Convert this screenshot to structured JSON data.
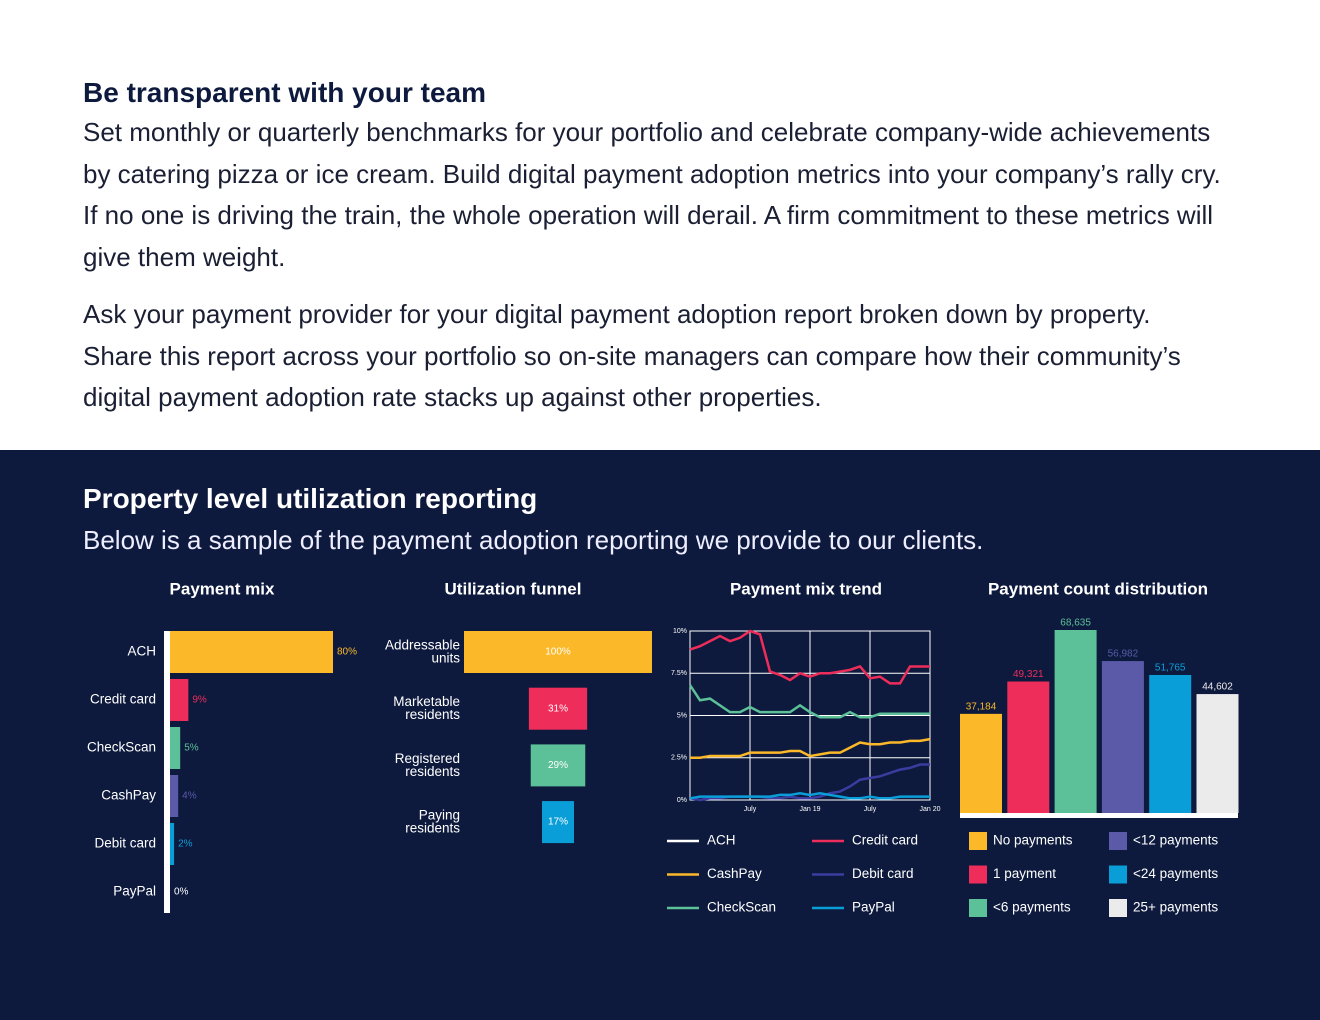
{
  "intro": {
    "heading": "Be transparent with your team",
    "paragraphs": [
      "Set monthly or quarterly benchmarks for your portfolio and celebrate company-wide achievements by catering pizza or ice cream. Build digital payment adoption metrics into your company’s rally cry. If no one is driving the train, the whole operation will derail. A firm commitment to these metrics will give them weight.",
      "Ask your payment provider for your digital payment adoption report broken down by property. Share this report across your portfolio so on-site managers can compare how their community’s digital payment adoption rate stacks up against other properties."
    ]
  },
  "reporting": {
    "heading": "Property level utilization reporting",
    "subheading": "Below is a sample of the payment adoption reporting we provide to our clients."
  },
  "chart_data": [
    {
      "type": "hbar",
      "title": "Payment mix",
      "categories": [
        "ACH",
        "Credit card",
        "CheckScan",
        "CashPay",
        "Debit card",
        "PayPal"
      ],
      "values": [
        80,
        9,
        5,
        4,
        2,
        0
      ],
      "value_labels": [
        "80%",
        "9%",
        "5%",
        "4%",
        "2%",
        "0%"
      ],
      "colors": [
        "#fbb829",
        "#ee2d5a",
        "#5cc098",
        "#5a5aa8",
        "#0a9ed8",
        "#ffffff"
      ]
    },
    {
      "type": "funnel",
      "title": "Utilization funnel",
      "categories": [
        "Addressable units",
        "Marketable residents",
        "Registered residents",
        "Paying residents"
      ],
      "values": [
        100,
        31,
        29,
        17
      ],
      "value_labels": [
        "100%",
        "31%",
        "29%",
        "17%"
      ],
      "colors": [
        "#fbb829",
        "#ee2d5a",
        "#5cc098",
        "#0a9ed8"
      ]
    },
    {
      "type": "line",
      "title": "Payment mix trend",
      "categories": [
        null,
        null,
        null,
        null,
        null,
        null,
        "July",
        null,
        null,
        null,
        null,
        null,
        "Jan 19",
        null,
        null,
        null,
        null,
        null,
        "July",
        null,
        null,
        null,
        null,
        null,
        "Jan 20"
      ],
      "ylim": [
        0,
        10
      ],
      "yticks": [
        {
          "value": 0,
          "label": "0%"
        },
        {
          "value": 2.5,
          "label": "2.5%"
        },
        {
          "value": 5,
          "label": "5%"
        },
        {
          "value": 7.5,
          "label": "7.5%"
        },
        {
          "value": 10,
          "label": "10%"
        }
      ],
      "grid": true,
      "series": [
        {
          "name": "ACH",
          "color": "#ffffff",
          "values": [
            null,
            null,
            null,
            null,
            null,
            null,
            null,
            null,
            null,
            null,
            null,
            null,
            null,
            null,
            null,
            null,
            null,
            null,
            null,
            null,
            null,
            null,
            null,
            null,
            null
          ]
        },
        {
          "name": "Credit card",
          "color": "#ee2d5a",
          "values": [
            8.9,
            9.1,
            9.4,
            9.7,
            9.4,
            9.6,
            10,
            9.8,
            7.6,
            7.4,
            7.1,
            7.5,
            7.3,
            7.5,
            7.5,
            7.6,
            7.7,
            7.9,
            7.2,
            7.3,
            6.9,
            6.9,
            7.9,
            7.9,
            7.9
          ]
        },
        {
          "name": "CashPay",
          "color": "#fbb829",
          "values": [
            2.5,
            2.5,
            2.6,
            2.6,
            2.6,
            2.6,
            2.8,
            2.8,
            2.8,
            2.8,
            2.9,
            2.9,
            2.6,
            2.7,
            2.8,
            2.8,
            3.1,
            3.4,
            3.3,
            3.3,
            3.4,
            3.4,
            3.5,
            3.5,
            3.6
          ]
        },
        {
          "name": "Debit card",
          "color": "#3c3ca0",
          "values": [
            0.1,
            0,
            0.1,
            0.1,
            0.2,
            0.2,
            0.2,
            0.2,
            0.1,
            0.1,
            0.2,
            0.1,
            0.1,
            0.2,
            0.4,
            0.5,
            0.8,
            1.2,
            1.3,
            1.4,
            1.6,
            1.8,
            1.9,
            2.1,
            2.1
          ]
        },
        {
          "name": "CheckScan",
          "color": "#5cc098",
          "values": [
            6.8,
            5.9,
            6.0,
            5.6,
            5.2,
            5.2,
            5.5,
            5.2,
            5.2,
            5.2,
            5.2,
            5.6,
            5.2,
            4.9,
            4.9,
            4.9,
            5.2,
            4.9,
            4.9,
            5.1,
            5.1,
            5.1,
            5.1,
            5.1,
            5.1
          ]
        },
        {
          "name": "PayPal",
          "color": "#0a9ed8",
          "values": [
            0.1,
            0.2,
            0.2,
            0.2,
            0.2,
            0.2,
            0.2,
            0.2,
            0.2,
            0.3,
            0.3,
            0.4,
            0.3,
            0.4,
            0.3,
            0.2,
            0.1,
            0.1,
            0.2,
            0.1,
            0.1,
            0.2,
            0.2,
            0.2,
            0.2
          ]
        }
      ]
    },
    {
      "type": "bar",
      "title": "Payment count distribution",
      "categories": [
        "No payments",
        "1 payment",
        "<6 payments",
        "<12 payments",
        "<24 payments",
        "25+ payments"
      ],
      "values": [
        37184,
        49321,
        68635,
        56982,
        51765,
        44602
      ],
      "value_labels": [
        "37,184",
        "49,321",
        "68,635",
        "56,982",
        "51,765",
        "44,602"
      ],
      "colors": [
        "#fbb829",
        "#ee2d5a",
        "#5cc098",
        "#5a5aa8",
        "#0a9ed8",
        "#ebebeb"
      ]
    }
  ]
}
